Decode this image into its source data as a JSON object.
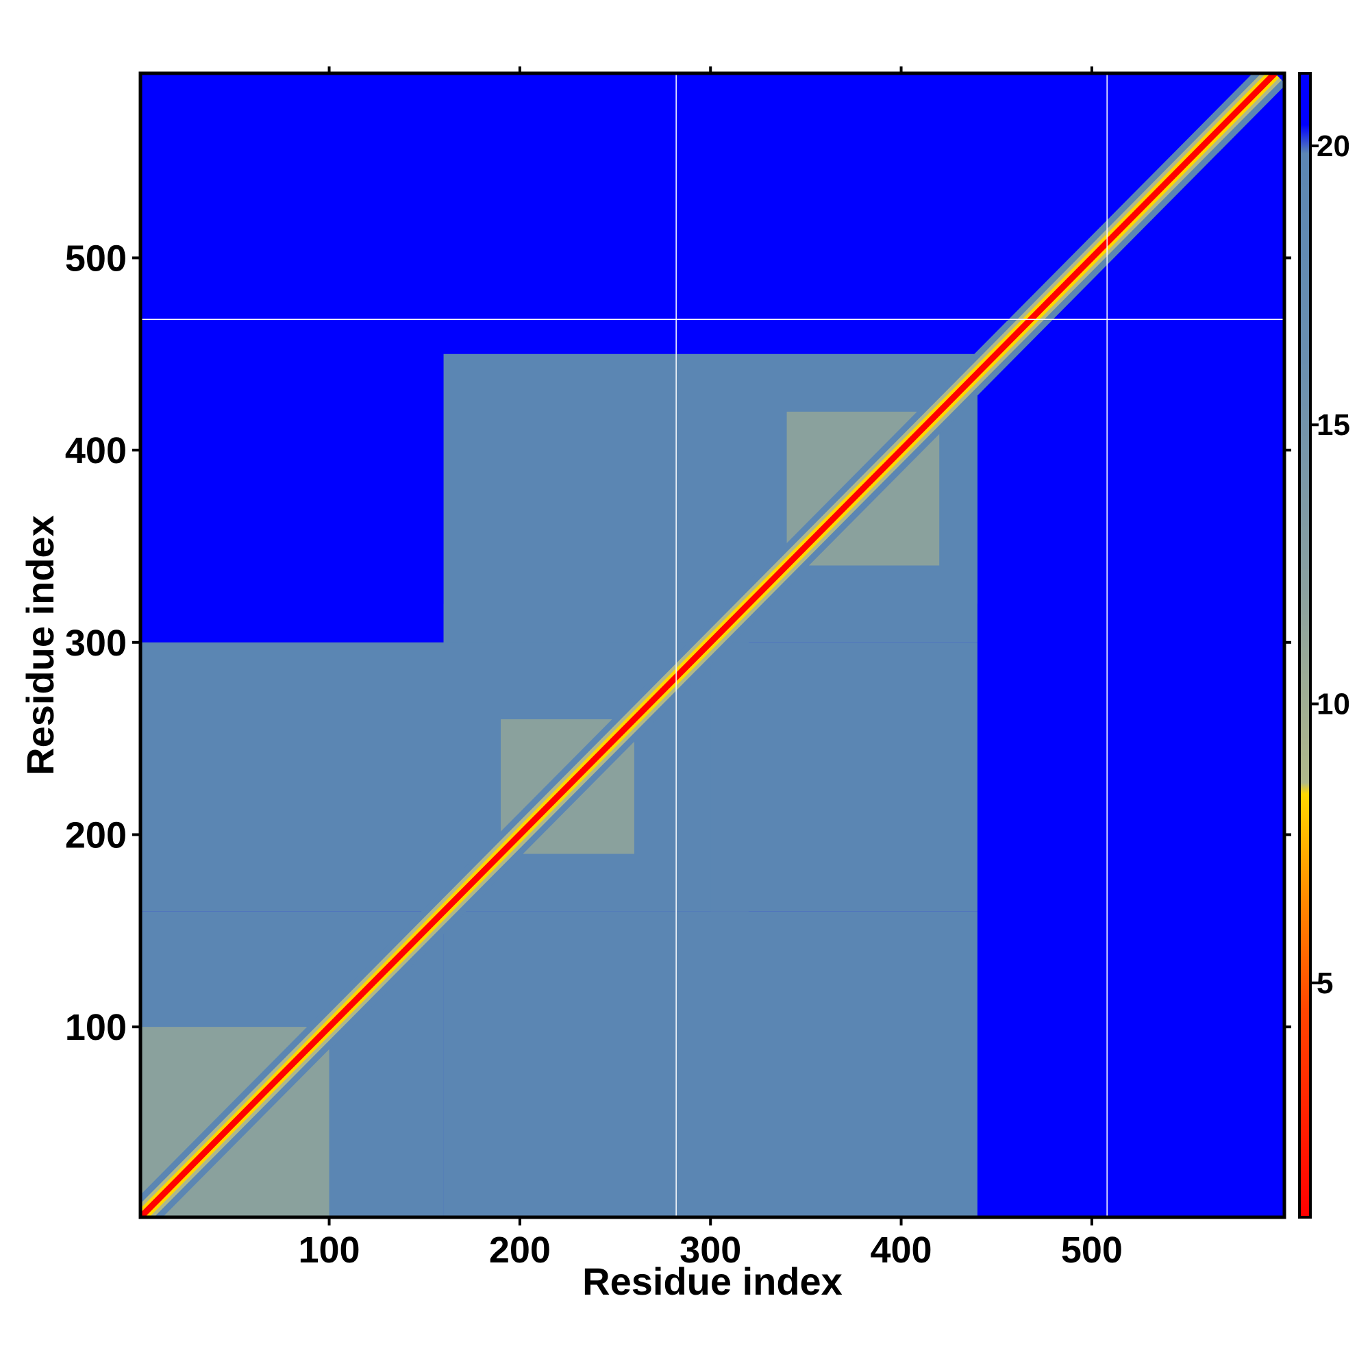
{
  "chart_data": {
    "type": "heatmap",
    "title": "",
    "xlabel": "Residue index",
    "ylabel": "Residue index",
    "xlim": [
      1,
      601
    ],
    "ylim": [
      1,
      596
    ],
    "x_ticks": [
      100,
      200,
      300,
      400,
      500
    ],
    "y_ticks": [
      100,
      200,
      300,
      400,
      500
    ],
    "colorbar": {
      "ticks": [
        5,
        10,
        15,
        20
      ],
      "range": [
        0.8,
        21.3
      ],
      "colors": {
        "low": "#ff0000",
        "mid_low": "#ff8c00",
        "mid": "#ffd700",
        "mid_high": "#b0b88a",
        "high": "#5b86b3",
        "max": "#0000ff"
      }
    },
    "background_color": "#0000ff",
    "gap_lines": {
      "x": [
        282,
        508
      ],
      "y": [
        468
      ]
    },
    "blocks": [
      {
        "x": [
          1,
          160
        ],
        "y": [
          1,
          160
        ],
        "level": "high"
      },
      {
        "x": [
          160,
          320
        ],
        "y": [
          160,
          320
        ],
        "level": "high"
      },
      {
        "x": [
          320,
          440
        ],
        "y": [
          320,
          440
        ],
        "level": "high"
      },
      {
        "x": [
          1,
          320
        ],
        "y": [
          160,
          300
        ],
        "level": "high"
      },
      {
        "x": [
          160,
          440
        ],
        "y": [
          1,
          160
        ],
        "level": "high"
      },
      {
        "x": [
          160,
          440
        ],
        "y": [
          300,
          450
        ],
        "level": "high"
      },
      {
        "x": [
          300,
          440
        ],
        "y": [
          160,
          300
        ],
        "level": "high"
      },
      {
        "x": [
          1,
          100
        ],
        "y": [
          1,
          100
        ],
        "level": "mid_high"
      },
      {
        "x": [
          190,
          260
        ],
        "y": [
          190,
          260
        ],
        "level": "mid_high"
      },
      {
        "x": [
          340,
          420
        ],
        "y": [
          340,
          420
        ],
        "level": "mid_high"
      }
    ]
  }
}
